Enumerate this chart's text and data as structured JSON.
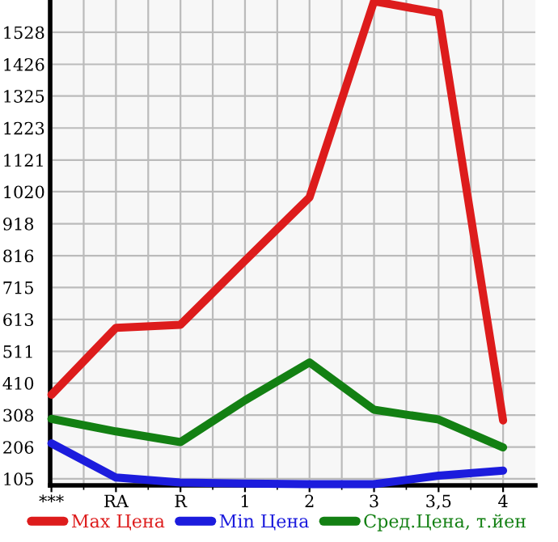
{
  "chart_data": {
    "type": "line",
    "categories": [
      "***",
      "RA",
      "R",
      "1",
      "2",
      "3",
      "3,5",
      "4"
    ],
    "series": [
      {
        "name": "Max Цена",
        "color": "#dd1c1c",
        "values": [
          373,
          586,
          596,
          800,
          1002,
          1627,
          1590,
          291
        ]
      },
      {
        "name": "Min Цена",
        "color": "#1c1cdd",
        "values": [
          218,
          109,
          93,
          90,
          88,
          88,
          115,
          131
        ]
      },
      {
        "name": "Сред.Цена, т.йен",
        "color": "#138013",
        "values": [
          296,
          256,
          222,
          355,
          476,
          325,
          294,
          205
        ]
      }
    ],
    "ylim": [
      84,
      1631
    ],
    "yticks": [
      105,
      206,
      308,
      410,
      511,
      613,
      715,
      816,
      918,
      1020,
      1121,
      1223,
      1325,
      1426,
      1528
    ],
    "grid": true,
    "legend": "bottom",
    "marker": "none",
    "line_style": "solid"
  }
}
